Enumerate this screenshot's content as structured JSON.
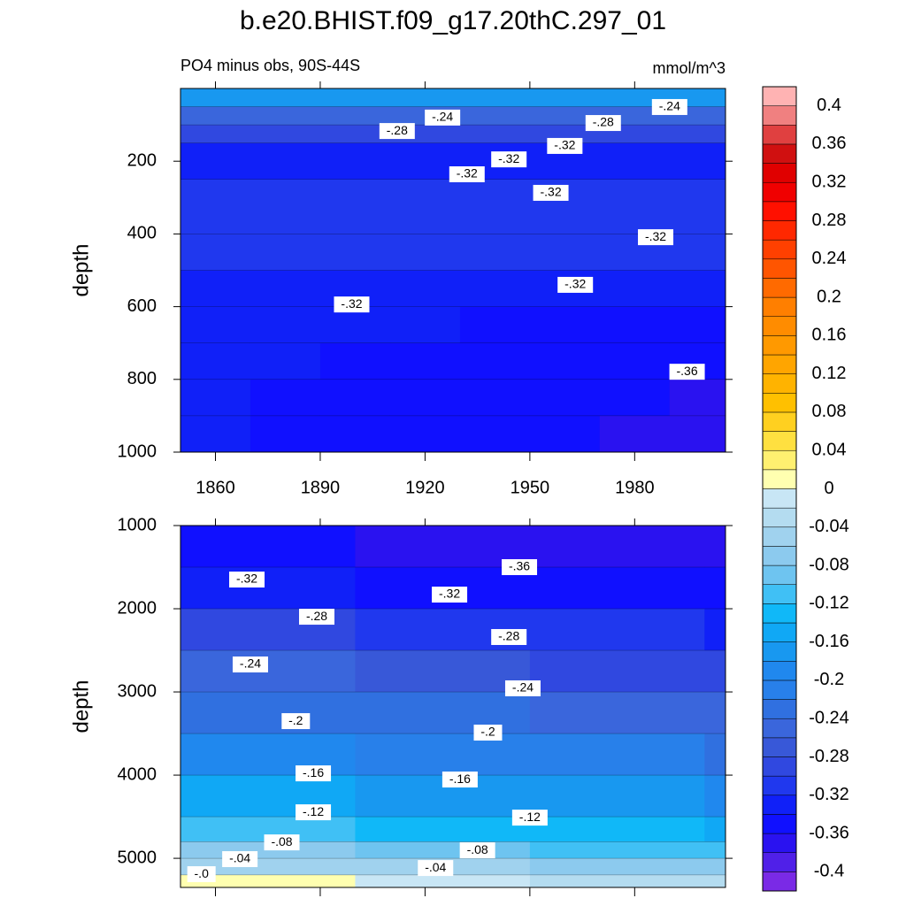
{
  "title": "b.e20.BHIST.f09_g17.20thC.297_01",
  "subtitle": "PO4 minus obs, 90S-44S",
  "units": "mmol/m^3",
  "colorbar": {
    "lim": [
      -0.42,
      0.42
    ],
    "ticks": [
      0.4,
      0.36,
      0.32,
      0.28,
      0.24,
      0.2,
      0.16,
      0.12,
      0.08,
      0.04,
      0,
      -0.04,
      -0.08,
      -0.12,
      -0.16,
      -0.2,
      -0.24,
      -0.28,
      -0.32,
      -0.36,
      -0.4
    ],
    "colors": [
      "#7a2ae6",
      "#5020e8",
      "#2a12f0",
      "#1010ff",
      "#1020f8",
      "#2038ee",
      "#3048e0",
      "#3858d8",
      "#3a66dc",
      "#3070e0",
      "#2880ea",
      "#2088ee",
      "#1898f0",
      "#10a8f5",
      "#10b8f8",
      "#40c0f5",
      "#6ec4f0",
      "#8ccaee",
      "#a0d2ee",
      "#b4dcf0",
      "#c8e6f5",
      "#ffffb0",
      "#fff070",
      "#ffe040",
      "#ffd020",
      "#ffc000",
      "#ffb300",
      "#ffa500",
      "#ff9900",
      "#ff8c00",
      "#ff7f00",
      "#ff6a00",
      "#ff5500",
      "#ff4000",
      "#ff2800",
      "#ff1000",
      "#f00000",
      "#e00000",
      "#d01010",
      "#e04040",
      "#f08080",
      "#ffb3b3"
    ]
  },
  "chart_data": [
    {
      "type": "contour",
      "ylabel": "depth",
      "xlim": [
        1850,
        2006
      ],
      "ylim": [
        1000,
        0
      ],
      "xticks": [
        1860,
        1890,
        1920,
        1950,
        1980
      ],
      "show_xtick_labels": true,
      "yticks": [
        200,
        400,
        600,
        800,
        1000
      ],
      "x": [
        1850,
        1870,
        1890,
        1910,
        1930,
        1950,
        1970,
        1990
      ],
      "y": [
        0,
        50,
        100,
        150,
        250,
        400,
        500,
        600,
        700,
        800,
        900
      ],
      "values": [
        [
          -0.17,
          -0.17,
          -0.17,
          -0.17,
          -0.17,
          -0.17,
          -0.17,
          -0.17
        ],
        [
          -0.25,
          -0.25,
          -0.25,
          -0.25,
          -0.25,
          -0.25,
          -0.25,
          -0.25
        ],
        [
          -0.29,
          -0.29,
          -0.29,
          -0.29,
          -0.29,
          -0.29,
          -0.29,
          -0.29
        ],
        [
          -0.33,
          -0.33,
          -0.33,
          -0.33,
          -0.33,
          -0.33,
          -0.33,
          -0.33
        ],
        [
          -0.31,
          -0.31,
          -0.31,
          -0.31,
          -0.31,
          -0.31,
          -0.31,
          -0.31
        ],
        [
          -0.31,
          -0.31,
          -0.31,
          -0.31,
          -0.31,
          -0.31,
          -0.31,
          -0.31
        ],
        [
          -0.33,
          -0.33,
          -0.33,
          -0.33,
          -0.33,
          -0.33,
          -0.33,
          -0.33
        ],
        [
          -0.33,
          -0.33,
          -0.33,
          -0.33,
          -0.35,
          -0.35,
          -0.35,
          -0.35
        ],
        [
          -0.33,
          -0.33,
          -0.35,
          -0.35,
          -0.35,
          -0.35,
          -0.35,
          -0.35
        ],
        [
          -0.33,
          -0.35,
          -0.35,
          -0.35,
          -0.35,
          -0.35,
          -0.35,
          -0.37
        ],
        [
          -0.33,
          -0.35,
          -0.35,
          -0.35,
          -0.35,
          -0.35,
          -0.37,
          -0.37
        ]
      ],
      "contour_labels": [
        {
          "value": -0.28,
          "label": "-.28",
          "x": 1912,
          "y": 117
        },
        {
          "value": -0.24,
          "label": "-.24",
          "x": 1925,
          "y": 80
        },
        {
          "value": -0.28,
          "label": "-.28",
          "x": 1971,
          "y": 95
        },
        {
          "value": -0.24,
          "label": "-.24",
          "x": 1990,
          "y": 51
        },
        {
          "value": -0.32,
          "label": "-.32",
          "x": 1960,
          "y": 158
        },
        {
          "value": -0.32,
          "label": "-.32",
          "x": 1932,
          "y": 236
        },
        {
          "value": -0.32,
          "label": "-.32",
          "x": 1944,
          "y": 195
        },
        {
          "value": -0.32,
          "label": "-.32",
          "x": 1956,
          "y": 287
        },
        {
          "value": -0.32,
          "label": "-.32",
          "x": 1986,
          "y": 409
        },
        {
          "value": -0.32,
          "label": "-.32",
          "x": 1963,
          "y": 540
        },
        {
          "value": -0.32,
          "label": "-.32",
          "x": 1899,
          "y": 594
        },
        {
          "value": -0.36,
          "label": "-.36",
          "x": 1995,
          "y": 779
        }
      ]
    },
    {
      "type": "contour",
      "ylabel": "depth",
      "xlim": [
        1850,
        2006
      ],
      "ylim": [
        5350,
        1000
      ],
      "xticks": [
        1860,
        1890,
        1920,
        1950,
        1980
      ],
      "show_xtick_labels": false,
      "yticks": [
        1000,
        2000,
        3000,
        4000,
        5000
      ],
      "x": [
        1850,
        1900,
        1950,
        2000
      ],
      "y": [
        1000,
        1500,
        2000,
        2500,
        3000,
        3500,
        4000,
        4500,
        4800,
        5000,
        5200
      ],
      "values": [
        [
          -0.35,
          -0.37,
          -0.37,
          -0.37
        ],
        [
          -0.33,
          -0.35,
          -0.35,
          -0.35
        ],
        [
          -0.29,
          -0.31,
          -0.31,
          -0.33
        ],
        [
          -0.25,
          -0.27,
          -0.29,
          -0.29
        ],
        [
          -0.23,
          -0.23,
          -0.25,
          -0.25
        ],
        [
          -0.19,
          -0.21,
          -0.21,
          -0.23
        ],
        [
          -0.15,
          -0.17,
          -0.17,
          -0.19
        ],
        [
          -0.11,
          -0.13,
          -0.13,
          -0.15
        ],
        [
          -0.07,
          -0.09,
          -0.11,
          -0.11
        ],
        [
          -0.05,
          -0.05,
          -0.07,
          -0.07
        ],
        [
          0.01,
          -0.01,
          -0.03,
          -0.03
        ]
      ],
      "contour_labels": [
        {
          "value": -0.32,
          "label": "-.32",
          "x": 1869,
          "y": 1649
        },
        {
          "value": -0.36,
          "label": "-.36",
          "x": 1947,
          "y": 1500
        },
        {
          "value": -0.32,
          "label": "-.32",
          "x": 1927,
          "y": 1830
        },
        {
          "value": -0.28,
          "label": "-.28",
          "x": 1889,
          "y": 2096
        },
        {
          "value": -0.28,
          "label": "-.28",
          "x": 1944,
          "y": 2340
        },
        {
          "value": -0.24,
          "label": "-.24",
          "x": 1870,
          "y": 2670
        },
        {
          "value": -0.24,
          "label": "-.24",
          "x": 1948,
          "y": 2957
        },
        {
          "value": -0.2,
          "label": "-.2",
          "x": 1883,
          "y": 3351
        },
        {
          "value": -0.2,
          "label": "-.2",
          "x": 1938,
          "y": 3489
        },
        {
          "value": -0.16,
          "label": "-.16",
          "x": 1888,
          "y": 3979
        },
        {
          "value": -0.16,
          "label": "-.16",
          "x": 1930,
          "y": 4053
        },
        {
          "value": -0.12,
          "label": "-.12",
          "x": 1888,
          "y": 4447
        },
        {
          "value": -0.12,
          "label": "-.12",
          "x": 1950,
          "y": 4511
        },
        {
          "value": -0.08,
          "label": "-.08",
          "x": 1879,
          "y": 4809
        },
        {
          "value": -0.08,
          "label": "-.08",
          "x": 1935,
          "y": 4904
        },
        {
          "value": -0.04,
          "label": "-.04",
          "x": 1867,
          "y": 5010
        },
        {
          "value": -0.04,
          "label": "-.04",
          "x": 1923,
          "y": 5117
        },
        {
          "value": 0,
          "label": "-.0",
          "x": 1856,
          "y": 5191
        }
      ]
    }
  ]
}
